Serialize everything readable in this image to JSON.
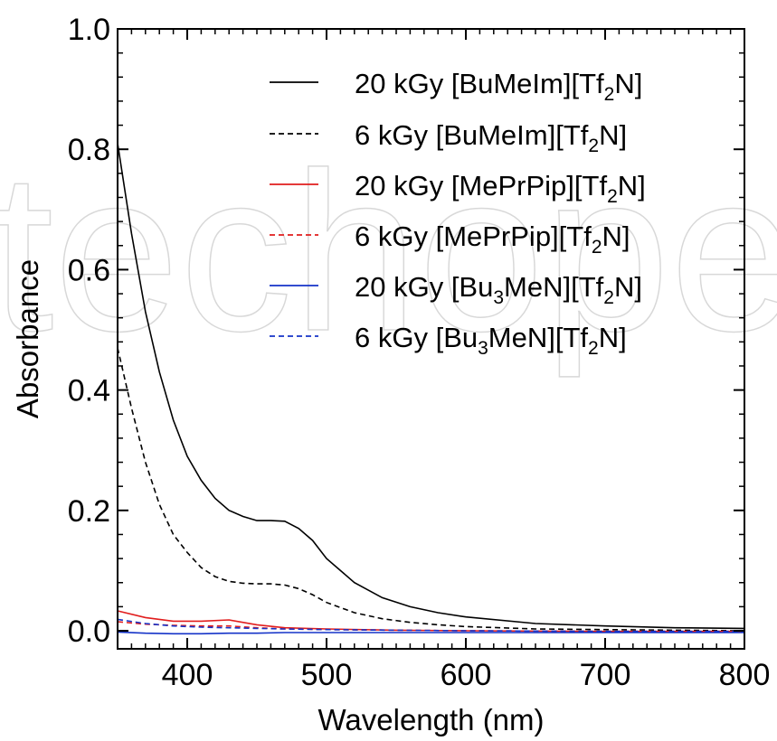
{
  "chart_data": {
    "type": "line",
    "xlabel": "Wavelength (nm)",
    "ylabel": "Absorbance",
    "xlim": [
      350,
      800
    ],
    "ylim": [
      -0.03,
      1.0
    ],
    "xticks": [
      400,
      500,
      600,
      700,
      800
    ],
    "xtick_labels": [
      "400",
      "500",
      "600",
      "700",
      "800"
    ],
    "yticks": [
      0.0,
      0.2,
      0.4,
      0.6,
      0.8,
      1.0
    ],
    "ytick_labels": [
      "0.0",
      "0.2",
      "0.4",
      "0.6",
      "0.8",
      "1.0"
    ],
    "grid": false,
    "legend_position": "top-right",
    "series": [
      {
        "name": "20 kGy [BuMeIm][Tf2N]",
        "legend": {
          "before": "20 kGy [BuMeIm][Tf",
          "sub": "2",
          "after": "N]"
        },
        "color": "#000000",
        "dash": "solid",
        "x": [
          350,
          360,
          370,
          380,
          390,
          400,
          410,
          420,
          430,
          440,
          450,
          460,
          470,
          480,
          490,
          500,
          520,
          540,
          560,
          580,
          600,
          650,
          700,
          750,
          800
        ],
        "y": [
          0.81,
          0.66,
          0.53,
          0.43,
          0.35,
          0.29,
          0.25,
          0.22,
          0.2,
          0.19,
          0.183,
          0.183,
          0.182,
          0.17,
          0.15,
          0.12,
          0.08,
          0.055,
          0.04,
          0.03,
          0.023,
          0.012,
          0.008,
          0.005,
          0.004
        ]
      },
      {
        "name": "6 kGy [BuMeIm][Tf2N]",
        "legend": {
          "before": "6 kGy [BuMeIm][Tf",
          "sub": "2",
          "after": "N]"
        },
        "color": "#000000",
        "dash": "dashed",
        "x": [
          350,
          360,
          370,
          380,
          390,
          400,
          410,
          420,
          430,
          440,
          450,
          460,
          470,
          480,
          490,
          500,
          520,
          540,
          560,
          580,
          600,
          650,
          700,
          750,
          800
        ],
        "y": [
          0.47,
          0.37,
          0.28,
          0.21,
          0.16,
          0.13,
          0.105,
          0.09,
          0.082,
          0.079,
          0.078,
          0.078,
          0.076,
          0.07,
          0.06,
          0.047,
          0.03,
          0.02,
          0.014,
          0.01,
          0.007,
          0.003,
          0.002,
          0.001,
          0.0
        ]
      },
      {
        "name": "20 kGy [MePrPip][Tf2N]",
        "legend": {
          "before": "20 kGy [MePrPip][Tf",
          "sub": "2",
          "after": "N]"
        },
        "color": "#e11d1d",
        "dash": "solid",
        "x": [
          350,
          370,
          390,
          410,
          430,
          450,
          470,
          500,
          550,
          600,
          700,
          800
        ],
        "y": [
          0.033,
          0.022,
          0.016,
          0.016,
          0.018,
          0.01,
          0.005,
          0.003,
          0.001,
          0.0,
          -0.001,
          -0.001
        ]
      },
      {
        "name": "6 kGy [MePrPip][Tf2N]",
        "legend": {
          "before": "6 kGy [MePrPip][Tf",
          "sub": "2",
          "after": "N]"
        },
        "color": "#e11d1d",
        "dash": "dashed",
        "x": [
          350,
          370,
          390,
          410,
          430,
          450,
          470,
          500,
          550,
          600,
          700,
          800
        ],
        "y": [
          0.015,
          0.011,
          0.009,
          0.008,
          0.008,
          0.005,
          0.003,
          0.002,
          0.001,
          0.0,
          -0.001,
          -0.001
        ]
      },
      {
        "name": "20 kGy [Bu3MeN][Tf2N]",
        "legend": {
          "before": "20 kGy [Bu",
          "sub": "3",
          "after": "MeN][Tf",
          "sub2": "2",
          "after2": "N]"
        },
        "color": "#1533c8",
        "dash": "solid",
        "x": [
          350,
          370,
          390,
          410,
          430,
          450,
          470,
          500,
          550,
          600,
          700,
          800
        ],
        "y": [
          -0.002,
          -0.004,
          -0.005,
          -0.005,
          -0.004,
          -0.004,
          -0.003,
          -0.003,
          -0.003,
          -0.003,
          -0.003,
          -0.003
        ]
      },
      {
        "name": "6 kGy [Bu3MeN][Tf2N]",
        "legend": {
          "before": "6 kGy [Bu",
          "sub": "3",
          "after": "MeN][Tf",
          "sub2": "2",
          "after2": "N]"
        },
        "color": "#1533c8",
        "dash": "dashed",
        "x": [
          350,
          370,
          390,
          410,
          430,
          450,
          470,
          500,
          550,
          600,
          700,
          800
        ],
        "y": [
          0.019,
          0.012,
          0.008,
          0.006,
          0.005,
          0.004,
          0.003,
          0.002,
          0.001,
          0.0,
          -0.001,
          -0.001
        ]
      }
    ]
  }
}
